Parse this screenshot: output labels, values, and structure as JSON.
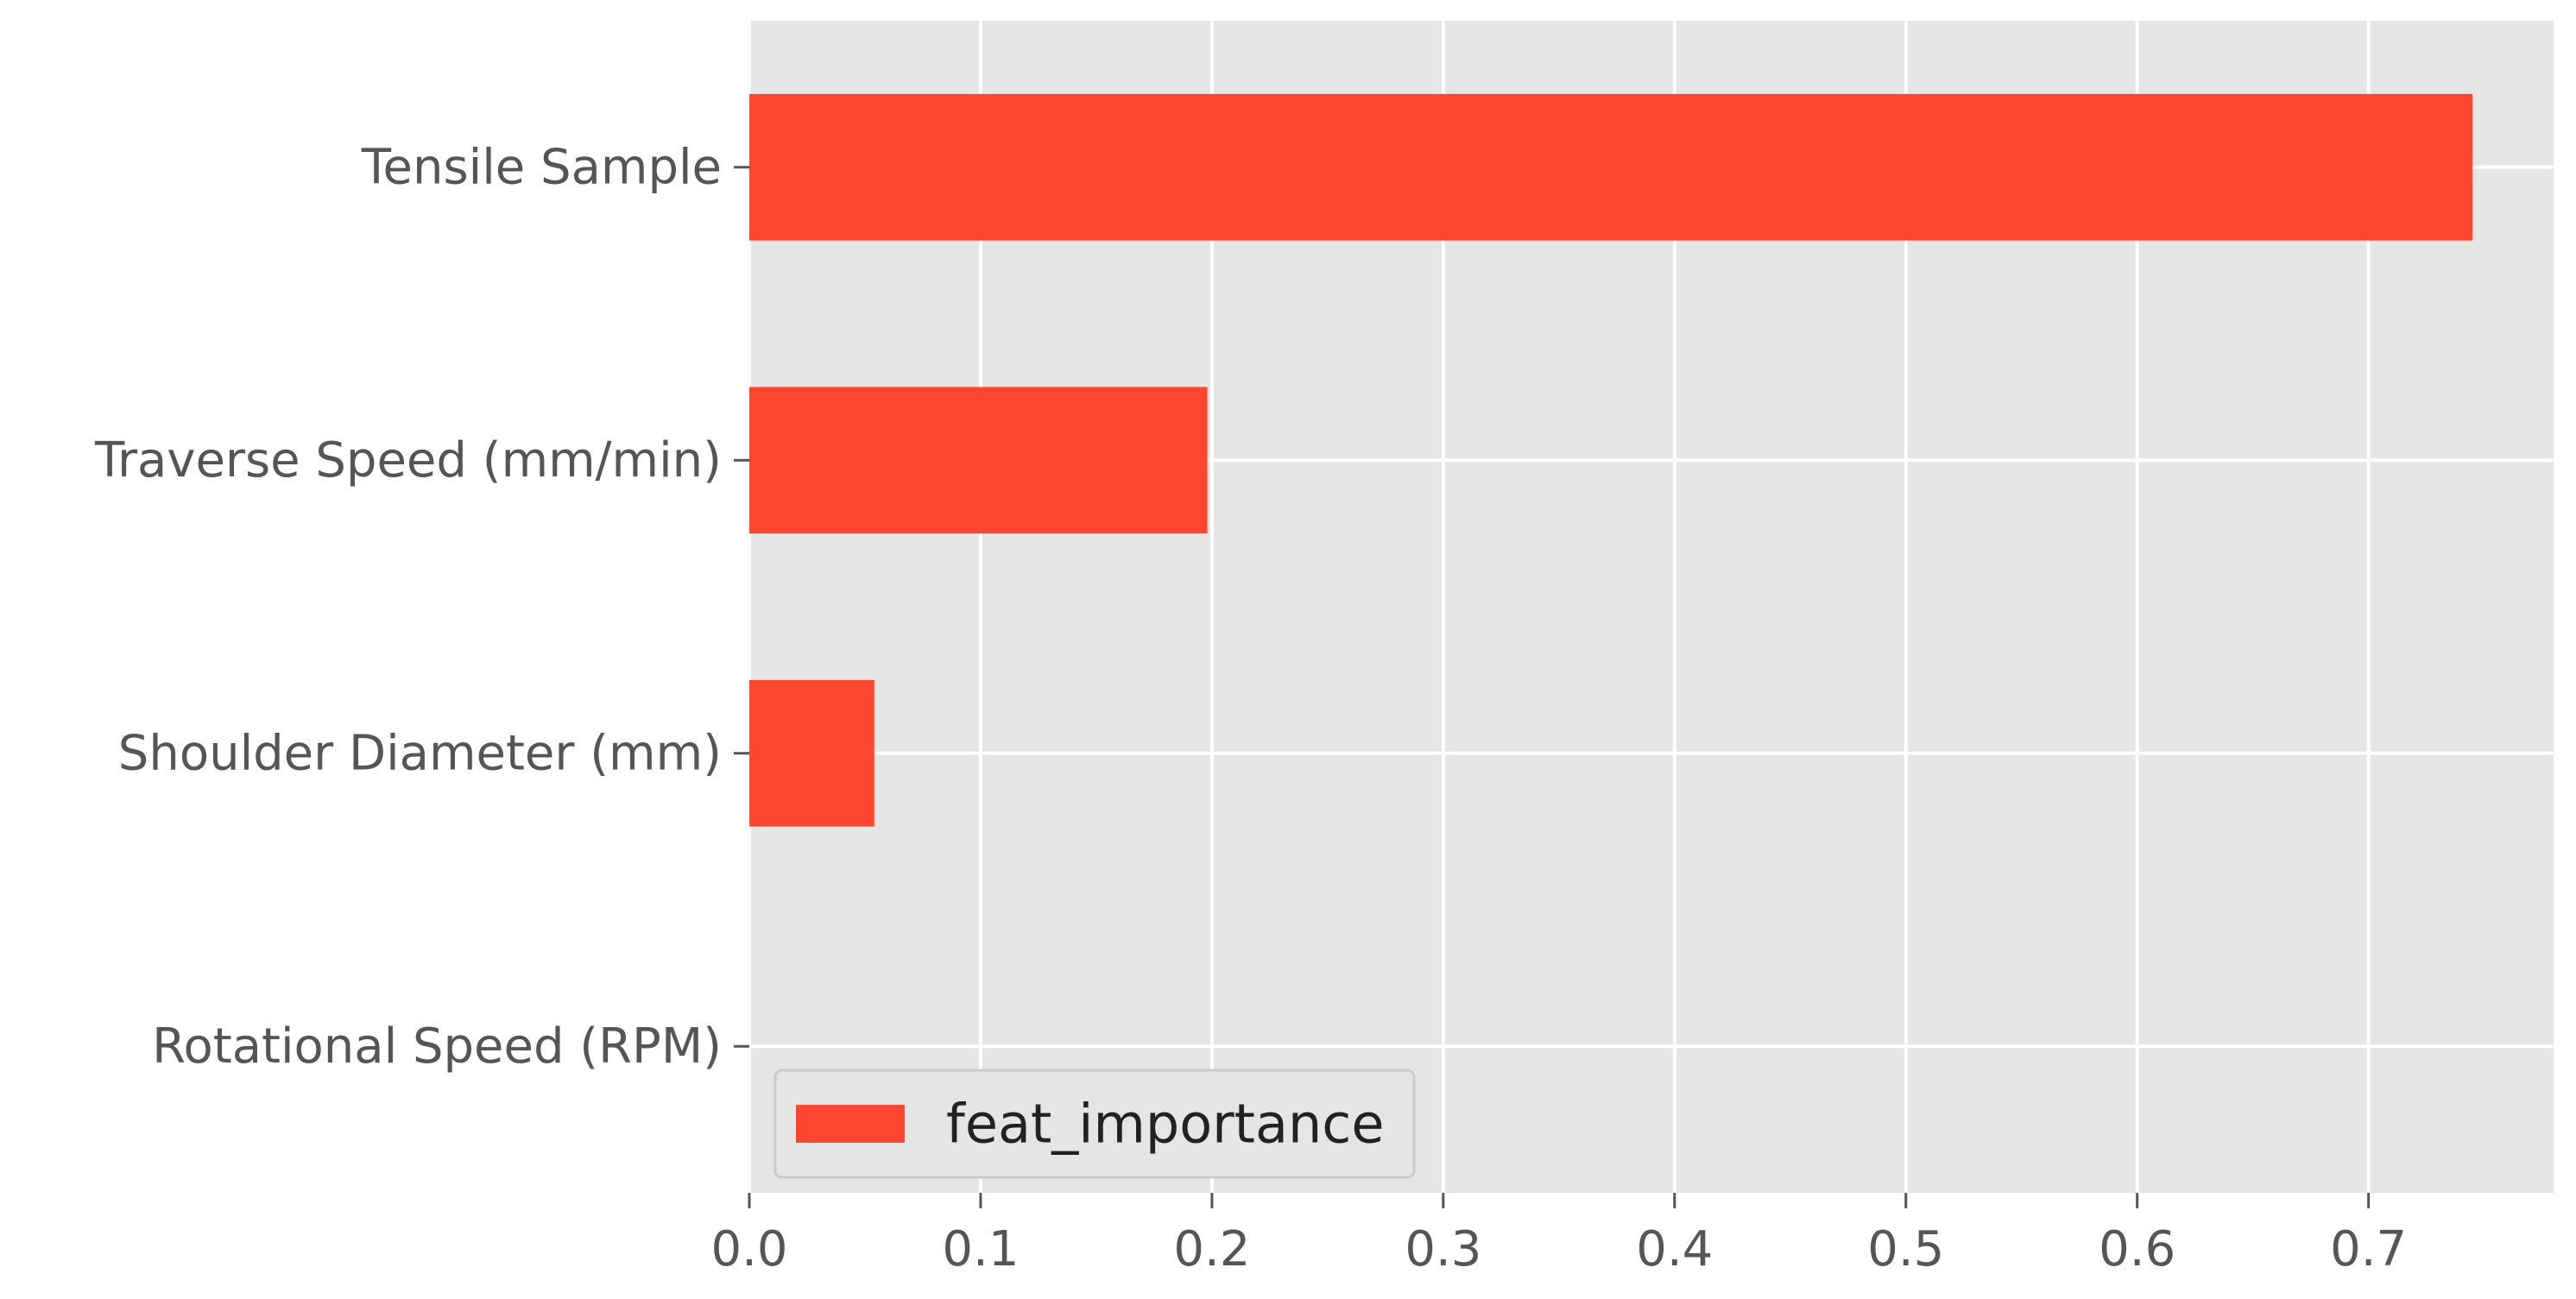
{
  "chart_data": {
    "type": "bar",
    "orientation": "horizontal",
    "categories": [
      "Rotational Speed (RPM)",
      "Shoulder Diameter (mm)",
      "Traverse Speed (mm/min)",
      "Tensile Sample"
    ],
    "series": [
      {
        "name": "feat_importance",
        "values": [
          0.0,
          0.054,
          0.198,
          0.745
        ],
        "color": "#fc4630"
      }
    ],
    "title": "",
    "xlabel": "",
    "ylabel": "",
    "xlim": [
      0,
      0.78
    ],
    "xticks": [
      0,
      0.1,
      0.2,
      0.3,
      0.4,
      0.5,
      0.6,
      0.7
    ],
    "xtick_labels": [
      "0.0",
      "0.1",
      "0.2",
      "0.3",
      "0.4",
      "0.5",
      "0.6",
      "0.7"
    ],
    "grid": true,
    "legend": {
      "position": "lower-left",
      "entries": [
        "feat_importance"
      ]
    },
    "style": {
      "plot_background": "#e5e5e5",
      "grid_color": "#ffffff",
      "bar_color": "#fc4630",
      "tick_label_color": "#555555"
    }
  }
}
